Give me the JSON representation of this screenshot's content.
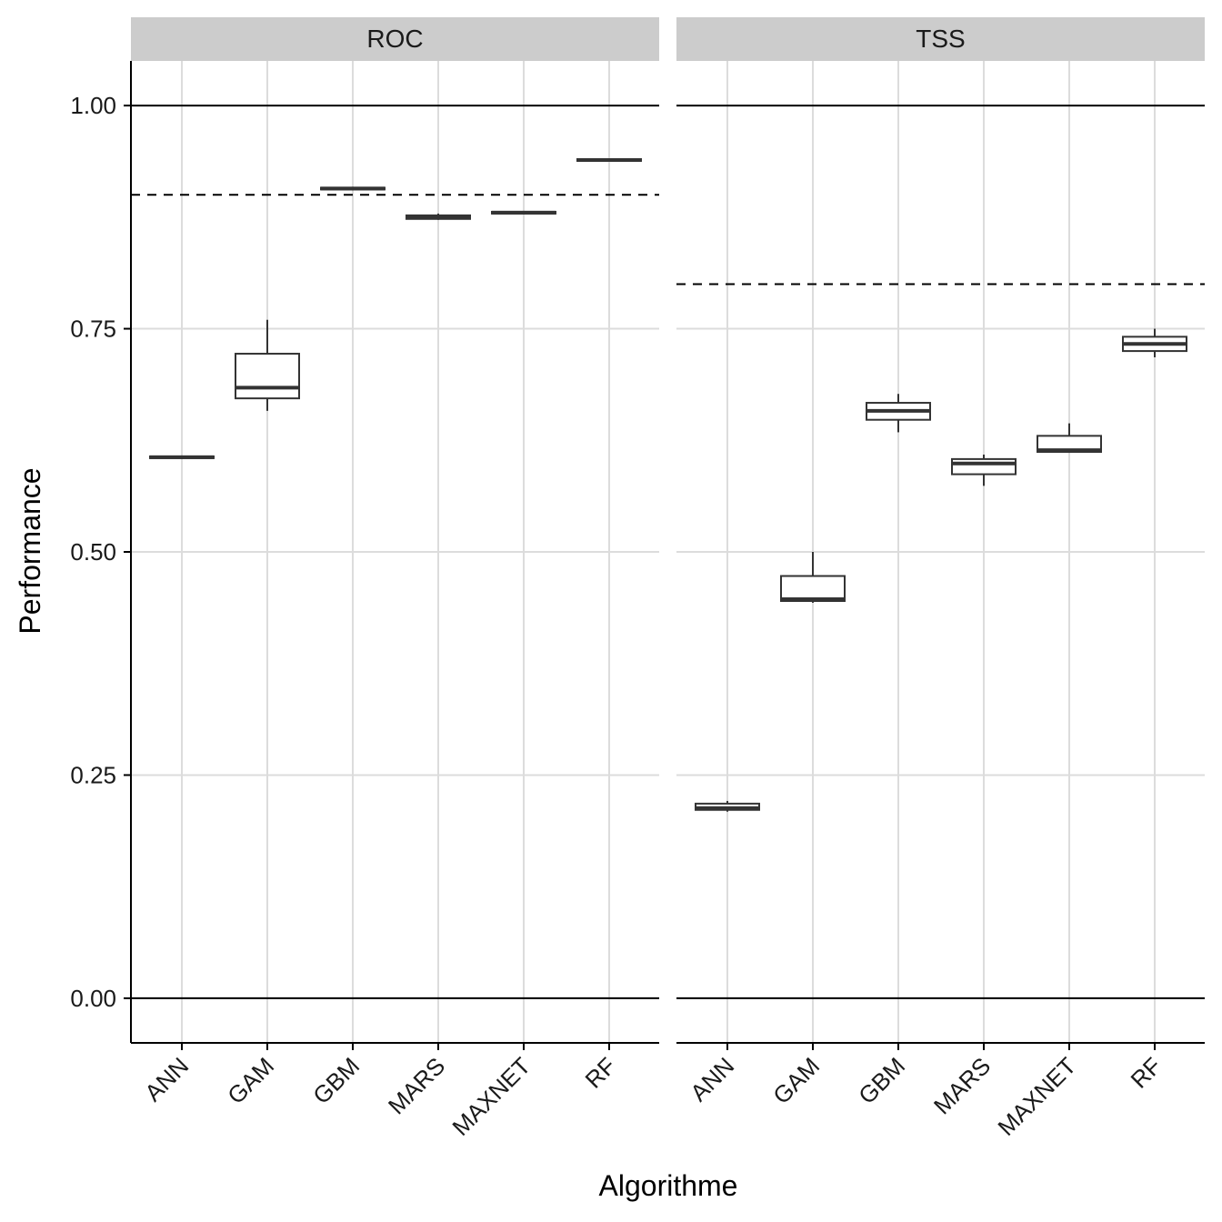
{
  "chart_data": {
    "type": "boxplot",
    "xlabel": "Algorithme",
    "ylabel": "Performance",
    "ylim": [
      -0.05,
      1.05
    ],
    "yticks": [
      "0.00",
      "0.25",
      "0.50",
      "0.75",
      "1.00"
    ],
    "ytick_values": [
      0,
      0.25,
      0.5,
      0.75,
      1.0
    ],
    "categories": [
      "ANN",
      "GAM",
      "GBM",
      "MARS",
      "MAXNET",
      "RF"
    ],
    "reference_lines_solid": [
      0,
      1
    ],
    "grid": true,
    "colors": {
      "strip_bg": "#cccccc",
      "grid": "#dcdcdc",
      "box_line": "#333333",
      "axis": "#000000"
    },
    "panels": [
      {
        "name": "ROC",
        "threshold": 0.9,
        "boxes": [
          {
            "category": "ANN",
            "min": 0.604,
            "q1": 0.605,
            "median": 0.606,
            "q3": 0.607,
            "max": 0.608
          },
          {
            "category": "GAM",
            "min": 0.658,
            "q1": 0.672,
            "median": 0.684,
            "q3": 0.722,
            "max": 0.76
          },
          {
            "category": "GBM",
            "min": 0.905,
            "q1": 0.906,
            "median": 0.907,
            "q3": 0.908,
            "max": 0.909
          },
          {
            "category": "MARS",
            "min": 0.872,
            "q1": 0.873,
            "median": 0.875,
            "q3": 0.877,
            "max": 0.879
          },
          {
            "category": "MAXNET",
            "min": 0.879,
            "q1": 0.879,
            "median": 0.88,
            "q3": 0.881,
            "max": 0.881
          },
          {
            "category": "RF",
            "min": 0.937,
            "q1": 0.938,
            "median": 0.939,
            "q3": 0.94,
            "max": 0.94
          }
        ]
      },
      {
        "name": "TSS",
        "threshold": 0.8,
        "boxes": [
          {
            "category": "ANN",
            "min": 0.209,
            "q1": 0.211,
            "median": 0.213,
            "q3": 0.218,
            "max": 0.221
          },
          {
            "category": "GAM",
            "min": 0.443,
            "q1": 0.445,
            "median": 0.447,
            "q3": 0.473,
            "max": 0.5
          },
          {
            "category": "GBM",
            "min": 0.634,
            "q1": 0.648,
            "median": 0.658,
            "q3": 0.667,
            "max": 0.677
          },
          {
            "category": "MARS",
            "min": 0.574,
            "q1": 0.587,
            "median": 0.599,
            "q3": 0.604,
            "max": 0.609
          },
          {
            "category": "MAXNET",
            "min": 0.611,
            "q1": 0.612,
            "median": 0.614,
            "q3": 0.63,
            "max": 0.644
          },
          {
            "category": "RF",
            "min": 0.718,
            "q1": 0.725,
            "median": 0.733,
            "q3": 0.741,
            "max": 0.75
          }
        ]
      }
    ]
  }
}
